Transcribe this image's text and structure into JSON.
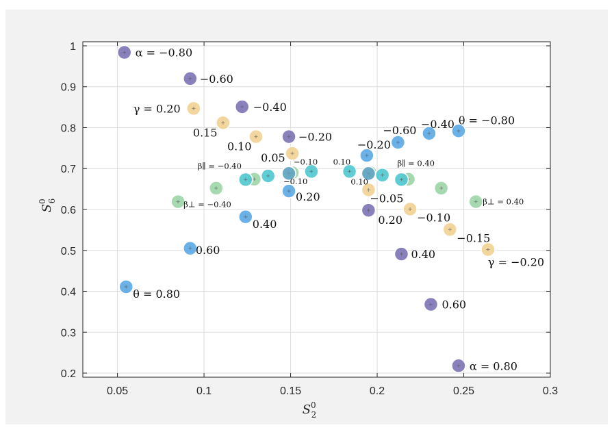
{
  "chart_data": {
    "type": "scatter",
    "xlabel": "S",
    "xlabel_sub": "2",
    "xlabel_sup": "0",
    "ylabel": "S",
    "ylabel_sub": "6",
    "ylabel_sup": "0",
    "xlim": [
      0.03,
      0.3
    ],
    "ylim": [
      0.19,
      1.01
    ],
    "xticks": [
      0.05,
      0.1,
      0.15,
      0.2,
      0.25,
      0.3
    ],
    "xtick_labels": [
      "0.05",
      "0.1",
      "0.15",
      "0.2",
      "0.25",
      "0.3"
    ],
    "yticks": [
      0.2,
      0.3,
      0.4,
      0.5,
      0.6,
      0.7,
      0.8,
      0.9,
      1.0
    ],
    "ytick_labels": [
      "0.2",
      "0.3",
      "0.4",
      "0.5",
      "0.6",
      "0.7",
      "0.8",
      "0.9",
      "1"
    ],
    "grid": true,
    "colors": {
      "alpha": "#7b73b4",
      "theta": "#5aa9e6",
      "gamma": "#f1d292",
      "beta_perp": "#9dd5a8",
      "beta_par": "#4fc6cf",
      "center": "#6f9fbf"
    },
    "series": [
      {
        "name": "alpha",
        "points": [
          {
            "x": 0.054,
            "y": 0.984,
            "label": "α = −0.80",
            "dx": 16,
            "dy": 6,
            "size": "large"
          },
          {
            "x": 0.092,
            "y": 0.92,
            "label": "−0.60",
            "dx": 14,
            "dy": 6,
            "size": "large"
          },
          {
            "x": 0.122,
            "y": 0.851,
            "label": "−0.40",
            "dx": 16,
            "dy": 6,
            "size": "large"
          },
          {
            "x": 0.149,
            "y": 0.778,
            "label": "−0.20",
            "dx": 14,
            "dy": 6,
            "size": "large"
          },
          {
            "x": 0.195,
            "y": 0.598,
            "label": "0.20",
            "dx": 14,
            "dy": 20,
            "size": "large"
          },
          {
            "x": 0.214,
            "y": 0.491,
            "label": "0.40",
            "dx": 14,
            "dy": 6,
            "size": "large"
          },
          {
            "x": 0.231,
            "y": 0.368,
            "label": "0.60",
            "dx": 16,
            "dy": 6,
            "size": "large"
          },
          {
            "x": 0.247,
            "y": 0.218,
            "label": "α = 0.80",
            "dx": 16,
            "dy": 6,
            "size": "large"
          }
        ]
      },
      {
        "name": "theta",
        "points": [
          {
            "x": 0.055,
            "y": 0.411,
            "label": "θ = 0.80",
            "dx": 10,
            "dy": 16,
            "size": "large"
          },
          {
            "x": 0.092,
            "y": 0.505,
            "label": "0.60",
            "dx": 8,
            "dy": 8,
            "size": "large"
          },
          {
            "x": 0.124,
            "y": 0.582,
            "label": "0.40",
            "dx": 10,
            "dy": 16,
            "size": "large"
          },
          {
            "x": 0.149,
            "y": 0.645,
            "label": "0.20",
            "dx": 10,
            "dy": 14,
            "size": "large"
          },
          {
            "x": 0.194,
            "y": 0.732,
            "label": "−0.20",
            "dx": -14,
            "dy": -10,
            "size": "large"
          },
          {
            "x": 0.212,
            "y": 0.764,
            "label": "−0.60",
            "dx": -22,
            "dy": -12,
            "size": "large"
          },
          {
            "x": 0.23,
            "y": 0.786,
            "label": "−0.40",
            "dx": -12,
            "dy": -8,
            "size": "large"
          },
          {
            "x": 0.247,
            "y": 0.792,
            "label": "θ = −0.80",
            "dx": 0,
            "dy": -10,
            "size": "large"
          }
        ]
      },
      {
        "name": "gamma",
        "points": [
          {
            "x": 0.094,
            "y": 0.847,
            "label": "γ = 0.20",
            "dx": -88,
            "dy": 6,
            "size": "large"
          },
          {
            "x": 0.111,
            "y": 0.812,
            "label": "0.15",
            "dx": -44,
            "dy": 20,
            "size": "large"
          },
          {
            "x": 0.13,
            "y": 0.778,
            "label": "0.10",
            "dx": -42,
            "dy": 20,
            "size": "large"
          },
          {
            "x": 0.151,
            "y": 0.737,
            "label": "0.05",
            "dx": -46,
            "dy": 12,
            "size": "large"
          },
          {
            "x": 0.195,
            "y": 0.648,
            "label": "−0.05",
            "dx": 2,
            "dy": 18,
            "size": "large"
          },
          {
            "x": 0.219,
            "y": 0.601,
            "label": "−0.10",
            "dx": 10,
            "dy": 18,
            "size": "large"
          },
          {
            "x": 0.242,
            "y": 0.551,
            "label": "−0.15",
            "dx": 10,
            "dy": 18,
            "size": "large"
          },
          {
            "x": 0.264,
            "y": 0.502,
            "label": "γ = −0.20",
            "dx": 0,
            "dy": 24,
            "size": "large"
          }
        ]
      },
      {
        "name": "beta_perp",
        "points": [
          {
            "x": 0.085,
            "y": 0.619,
            "label": "β⊥ = −0.40",
            "dx": 8,
            "dy": 8,
            "size": "large"
          },
          {
            "x": 0.107,
            "y": 0.652,
            "label": "",
            "dx": 0,
            "dy": 0,
            "size": "large"
          },
          {
            "x": 0.129,
            "y": 0.674,
            "label": "",
            "dx": 0,
            "dy": 0,
            "size": "large"
          },
          {
            "x": 0.151,
            "y": 0.69,
            "label": "",
            "dx": 0,
            "dy": 0,
            "size": "large"
          },
          {
            "x": 0.196,
            "y": 0.69,
            "label": "",
            "dx": 0,
            "dy": 0,
            "size": "large"
          },
          {
            "x": 0.218,
            "y": 0.674,
            "label": "",
            "dx": 0,
            "dy": 0,
            "size": "large"
          },
          {
            "x": 0.237,
            "y": 0.652,
            "label": "",
            "dx": 0,
            "dy": 0,
            "size": "large"
          },
          {
            "x": 0.257,
            "y": 0.619,
            "label": "β⊥ = 0.40",
            "dx": 10,
            "dy": 4,
            "size": "large"
          }
        ]
      },
      {
        "name": "beta_par",
        "points": [
          {
            "x": 0.124,
            "y": 0.673,
            "label": "β∥ = −0.40",
            "dx": -70,
            "dy": -16,
            "size": "large"
          },
          {
            "x": 0.137,
            "y": 0.682,
            "label": "",
            "dx": 0,
            "dy": 0,
            "size": "large"
          },
          {
            "x": 0.149,
            "y": 0.689,
            "label": "−0.10",
            "dx": -8,
            "dy": 16,
            "size": "large"
          },
          {
            "x": 0.162,
            "y": 0.693,
            "label": "−0.10",
            "dx": -26,
            "dy": -10,
            "size": "large"
          },
          {
            "x": 0.184,
            "y": 0.693,
            "label": "0.10",
            "dx": -24,
            "dy": -10,
            "size": "large"
          },
          {
            "x": 0.195,
            "y": 0.688,
            "label": "0.10",
            "dx": -26,
            "dy": 16,
            "size": "large"
          },
          {
            "x": 0.203,
            "y": 0.684,
            "label": "",
            "dx": 0,
            "dy": 0,
            "size": "large"
          },
          {
            "x": 0.214,
            "y": 0.673,
            "label": "β∥ = 0.40",
            "dx": -6,
            "dy": -20,
            "size": "large"
          }
        ]
      },
      {
        "name": "center",
        "points": [
          {
            "x": 0.149,
            "y": 0.688,
            "label": "",
            "dx": 0,
            "dy": 0,
            "size": "large"
          },
          {
            "x": 0.195,
            "y": 0.688,
            "label": "",
            "dx": 0,
            "dy": 0,
            "size": "large"
          }
        ]
      }
    ]
  }
}
